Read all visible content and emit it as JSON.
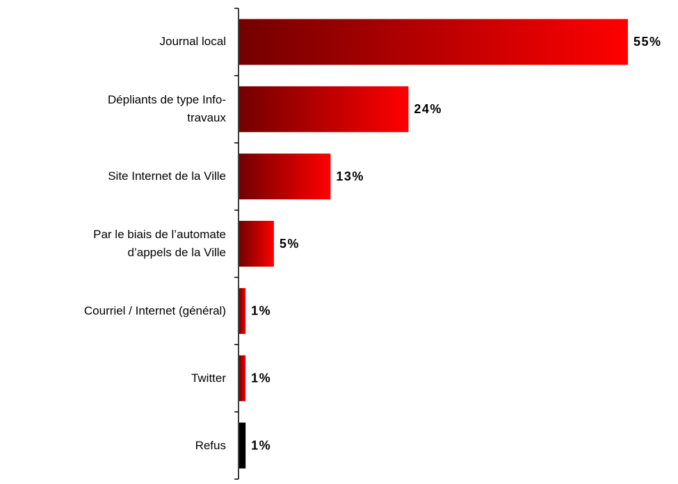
{
  "chart_data": {
    "type": "bar",
    "orientation": "horizontal",
    "categories": [
      "Journal local",
      "Dépliants de type Info-\ntravaux",
      "Site Internet de la Ville",
      "Par le biais de l’automate\nd’appels de la Ville",
      "Courriel / Internet (général)",
      "Twitter",
      "Refus"
    ],
    "values": [
      55,
      24,
      13,
      5,
      1,
      1,
      1
    ],
    "value_labels": [
      "55%",
      "24%",
      "13%",
      "5%",
      "1%",
      "1%",
      "1%"
    ],
    "colors": [
      "#ff0000",
      "#ff0000",
      "#ff0000",
      "#ff0000",
      "#ff0000",
      "#ff0000",
      "#000000"
    ]
  }
}
